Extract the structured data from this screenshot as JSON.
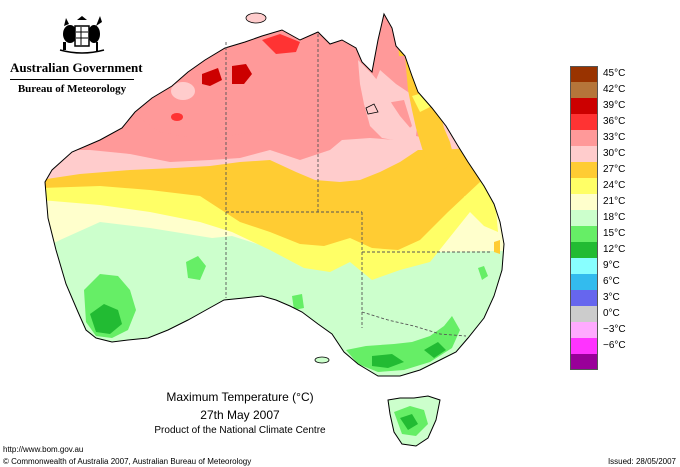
{
  "header": {
    "agency": "Australian Government",
    "bureau": "Bureau of Meteorology"
  },
  "map": {
    "title": "Maximum Temperature (°C)",
    "date": "27th May 2007",
    "product": "Product of the National Climate Centre"
  },
  "legend": {
    "items": [
      {
        "label": "45°C",
        "color": "#993300"
      },
      {
        "label": "42°C",
        "color": "#b5753a"
      },
      {
        "label": "39°C",
        "color": "#cc0000"
      },
      {
        "label": "36°C",
        "color": "#ff3333"
      },
      {
        "label": "33°C",
        "color": "#ff9999"
      },
      {
        "label": "30°C",
        "color": "#ffcccc"
      },
      {
        "label": "27°C",
        "color": "#ffcc33"
      },
      {
        "label": "24°C",
        "color": "#ffff66"
      },
      {
        "label": "21°C",
        "color": "#ffffcc"
      },
      {
        "label": "18°C",
        "color": "#ccffcc"
      },
      {
        "label": "15°C",
        "color": "#66ee66"
      },
      {
        "label": "12°C",
        "color": "#22bb33"
      },
      {
        "label": "9°C",
        "color": "#88ffff"
      },
      {
        "label": "6°C",
        "color": "#33bbee"
      },
      {
        "label": "3°C",
        "color": "#6666ee"
      },
      {
        "label": "0°C",
        "color": "#cccccc"
      },
      {
        "label": "−3°C",
        "color": "#ffaaff"
      },
      {
        "label": "−6°C",
        "color": "#ff33ff"
      },
      {
        "label": "",
        "color": "#990099"
      }
    ]
  },
  "footer": {
    "url": "http://www.bom.gov.au",
    "copyright": "© Commonwealth of Australia 2007, Australian Bureau of Meteorology",
    "issued": "Issued: 28/05/2007"
  }
}
